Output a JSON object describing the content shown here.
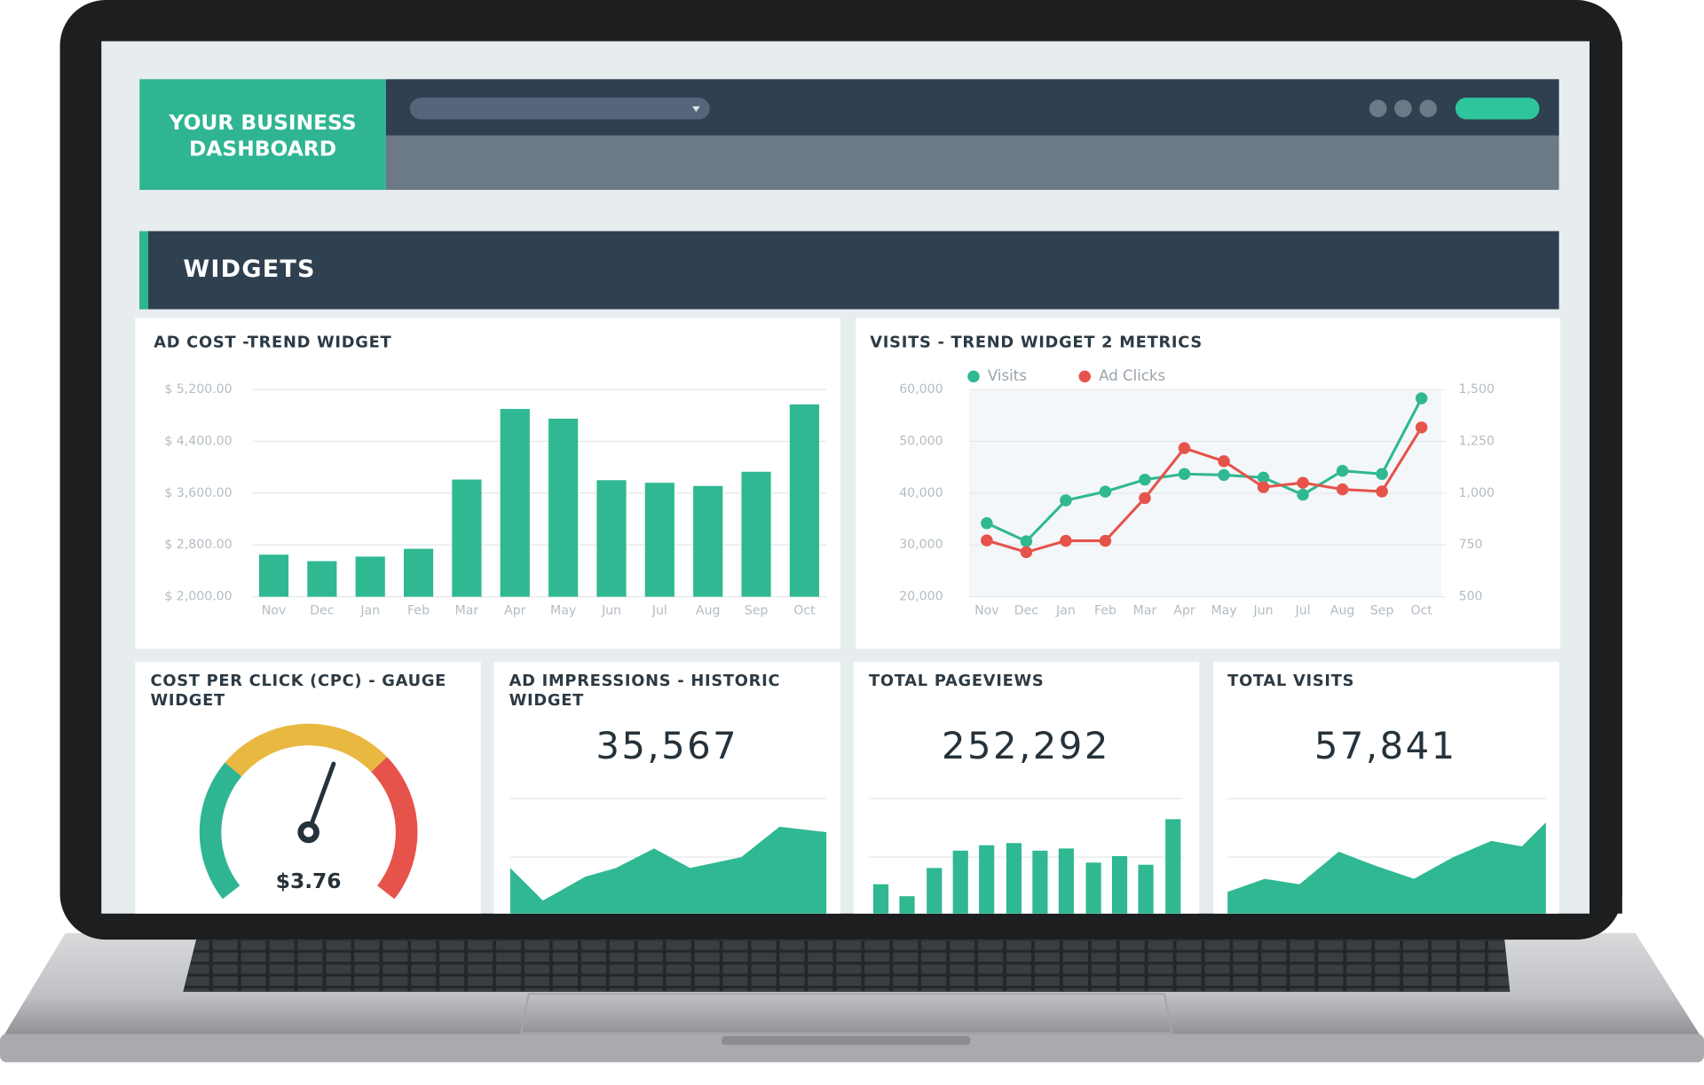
{
  "header": {
    "title_lines": [
      "YOUR BUSINESS",
      "DASHBOARD"
    ]
  },
  "section_title": "WIDGETS",
  "chart_data": [
    {
      "type": "bar",
      "title": "AD COST -TREND WIDGET",
      "categories": [
        "Nov",
        "Dec",
        "Jan",
        "Feb",
        "Mar",
        "Apr",
        "May",
        "Jun",
        "Jul",
        "Aug",
        "Sep",
        "Oct"
      ],
      "values": [
        2650,
        2550,
        2620,
        2740,
        3810,
        4900,
        4750,
        3800,
        3760,
        3710,
        3930,
        4970
      ],
      "color": "#2fb892",
      "ylim": [
        2000,
        5200
      ],
      "yticks": [
        {
          "value": 2000,
          "label": "$ 2,000.00"
        },
        {
          "value": 2800,
          "label": "$ 2,800.00"
        },
        {
          "value": 3600,
          "label": "$ 3,600.00"
        },
        {
          "value": 4400,
          "label": "$ 4,400.00"
        },
        {
          "value": 5200,
          "label": "$ 5,200.00"
        }
      ],
      "grid": true
    },
    {
      "type": "line",
      "title": "VISITS - TREND WIDGET 2 METRICS",
      "categories": [
        "Nov",
        "Dec",
        "Jan",
        "Feb",
        "Mar",
        "Apr",
        "May",
        "Jun",
        "Jul",
        "Aug",
        "Sep",
        "Oct"
      ],
      "series": [
        {
          "name": "Visits",
          "color": "#2fb892",
          "values": [
            34200,
            30700,
            38600,
            40300,
            42600,
            43700,
            43500,
            43000,
            39700,
            44300,
            43700,
            58300
          ]
        },
        {
          "name": "Ad Clicks",
          "color": "#e5534b",
          "axis": "y2",
          "values": [
            772,
            715,
            770,
            770,
            976,
            1217,
            1154,
            1029,
            1050,
            1018,
            1008,
            1317
          ]
        }
      ],
      "ylim": [
        20000,
        60000
      ],
      "yticks": [
        {
          "value": 20000,
          "label": "20,000"
        },
        {
          "value": 30000,
          "label": "30,000"
        },
        {
          "value": 40000,
          "label": "40,000"
        },
        {
          "value": 50000,
          "label": "50,000"
        },
        {
          "value": 60000,
          "label": "60,000"
        }
      ],
      "y2lim": [
        500,
        1500
      ],
      "y2ticks": [
        500,
        750,
        {
          "value": 1000,
          "label": "1,000"
        },
        {
          "value": 1250,
          "label": "1,250"
        },
        {
          "value": 1500,
          "label": "1,500"
        }
      ],
      "grid": true,
      "legend": "top"
    }
  ],
  "gauge_widget": {
    "title": "COST PER CLICK (CPC) - GAUGE WIDGET",
    "value_label": "$3.76"
  },
  "metric_widgets": [
    {
      "title": "AD IMPRESSIONS - HISTORIC WIDGET",
      "value": "35,567"
    },
    {
      "title": "TOTAL PAGEVIEWS",
      "value": "252,292"
    },
    {
      "title": "TOTAL VISITS",
      "value": "57,841"
    }
  ]
}
